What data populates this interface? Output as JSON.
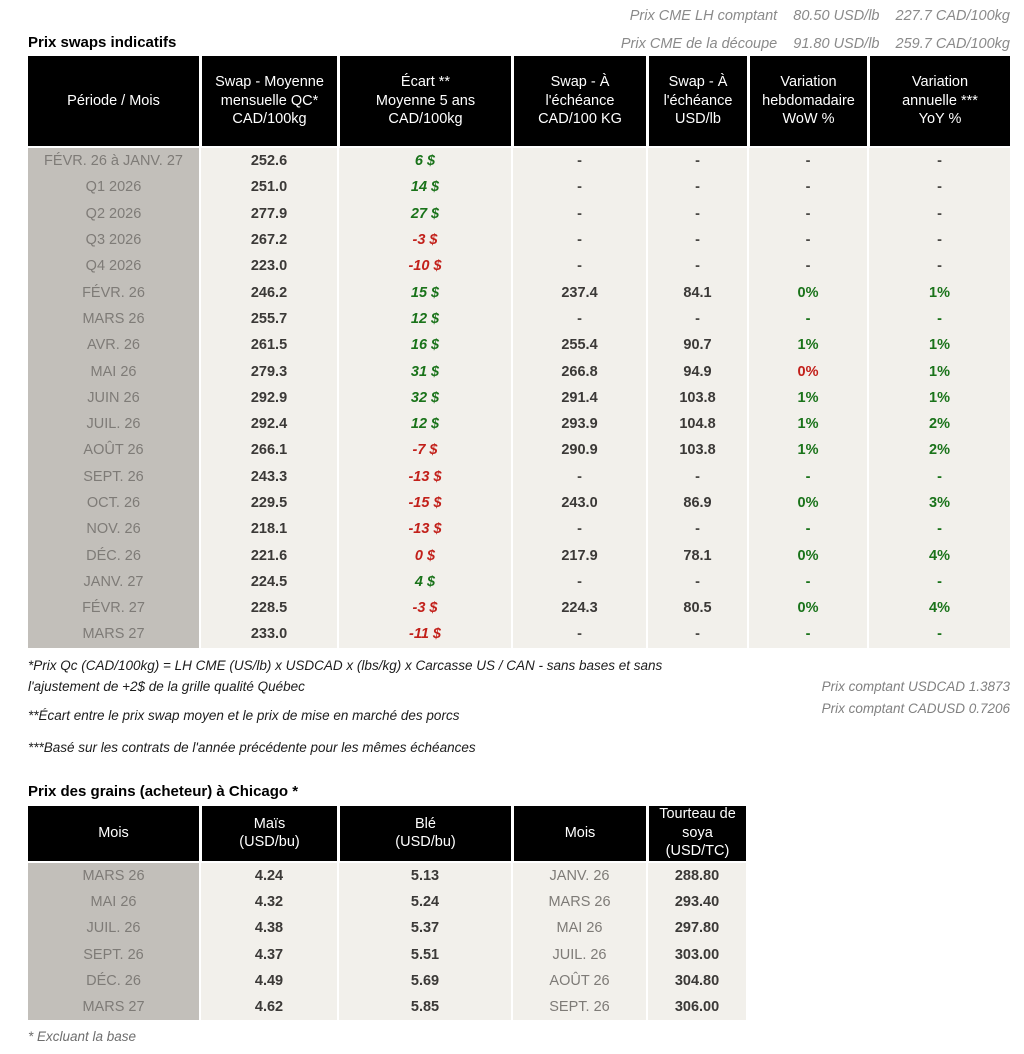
{
  "top": {
    "line1": {
      "label": "Prix CME LH comptant",
      "usd": "80.50 USD/lb",
      "cad": "227.7 CAD/100kg"
    },
    "line2": {
      "label": "Prix CME de la découpe",
      "usd": "91.80 USD/lb",
      "cad": "259.7 CAD/100kg"
    }
  },
  "colors": {
    "green": "#1a731a",
    "red": "#c2201a",
    "neutral": "#4b4946",
    "num": "#3b3937"
  },
  "swaps": {
    "title": "Prix swaps indicatifs",
    "headers": [
      "Période / Mois",
      "Swap - Moyenne\nmensuelle QC*\nCAD/100kg",
      "Écart **\nMoyenne 5 ans\nCAD/100kg",
      "Swap - À\nl'échéance\nCAD/100 KG",
      "Swap - À\nl'échéance\nUSD/lb",
      "Variation\nhebdomadaire\nWoW %",
      "Variation\nannuelle ***\nYoY %"
    ],
    "rows": [
      {
        "period": "FÉVR. 26 à  JANV. 27",
        "swap": "252.6",
        "ecart": "6 $",
        "ecart_tone": "green",
        "cad": "-",
        "usd": "-",
        "wow": "-",
        "wow_tone": "neutral",
        "yoy": "-",
        "yoy_tone": "neutral"
      },
      {
        "period": "Q1 2026",
        "swap": "251.0",
        "ecart": "14 $",
        "ecart_tone": "green",
        "cad": "-",
        "usd": "-",
        "wow": "-",
        "wow_tone": "neutral",
        "yoy": "-",
        "yoy_tone": "neutral"
      },
      {
        "period": "Q2 2026",
        "swap": "277.9",
        "ecart": "27 $",
        "ecart_tone": "green",
        "cad": "-",
        "usd": "-",
        "wow": "-",
        "wow_tone": "neutral",
        "yoy": "-",
        "yoy_tone": "neutral"
      },
      {
        "period": "Q3 2026",
        "swap": "267.2",
        "ecart": "-3 $",
        "ecart_tone": "red",
        "cad": "-",
        "usd": "-",
        "wow": "-",
        "wow_tone": "neutral",
        "yoy": "-",
        "yoy_tone": "neutral"
      },
      {
        "period": "Q4 2026",
        "swap": "223.0",
        "ecart": "-10 $",
        "ecart_tone": "red",
        "cad": "-",
        "usd": "-",
        "wow": "-",
        "wow_tone": "neutral",
        "yoy": "-",
        "yoy_tone": "neutral"
      },
      {
        "period": "FÉVR. 26",
        "swap": "246.2",
        "ecart": "15 $",
        "ecart_tone": "green",
        "cad": "237.4",
        "usd": "84.1",
        "wow": "0%",
        "wow_tone": "green",
        "yoy": "1%",
        "yoy_tone": "green"
      },
      {
        "period": "MARS 26",
        "swap": "255.7",
        "ecart": "12 $",
        "ecart_tone": "green",
        "cad": "-",
        "usd": "-",
        "wow": "-",
        "wow_tone": "green",
        "yoy": "-",
        "yoy_tone": "green"
      },
      {
        "period": "AVR. 26",
        "swap": "261.5",
        "ecart": "16 $",
        "ecart_tone": "green",
        "cad": "255.4",
        "usd": "90.7",
        "wow": "1%",
        "wow_tone": "green",
        "yoy": "1%",
        "yoy_tone": "green"
      },
      {
        "period": "MAI 26",
        "swap": "279.3",
        "ecart": "31 $",
        "ecart_tone": "green",
        "cad": "266.8",
        "usd": "94.9",
        "wow": "0%",
        "wow_tone": "red",
        "yoy": "1%",
        "yoy_tone": "green"
      },
      {
        "period": "JUIN 26",
        "swap": "292.9",
        "ecart": "32 $",
        "ecart_tone": "green",
        "cad": "291.4",
        "usd": "103.8",
        "wow": "1%",
        "wow_tone": "green",
        "yoy": "1%",
        "yoy_tone": "green"
      },
      {
        "period": "JUIL. 26",
        "swap": "292.4",
        "ecart": "12 $",
        "ecart_tone": "green",
        "cad": "293.9",
        "usd": "104.8",
        "wow": "1%",
        "wow_tone": "green",
        "yoy": "2%",
        "yoy_tone": "green"
      },
      {
        "period": "AOÛT 26",
        "swap": "266.1",
        "ecart": "-7 $",
        "ecart_tone": "red",
        "cad": "290.9",
        "usd": "103.8",
        "wow": "1%",
        "wow_tone": "green",
        "yoy": "2%",
        "yoy_tone": "green"
      },
      {
        "period": "SEPT. 26",
        "swap": "243.3",
        "ecart": "-13 $",
        "ecart_tone": "red",
        "cad": "-",
        "usd": "-",
        "wow": "-",
        "wow_tone": "green",
        "yoy": "-",
        "yoy_tone": "green"
      },
      {
        "period": "OCT. 26",
        "swap": "229.5",
        "ecart": "-15 $",
        "ecart_tone": "red",
        "cad": "243.0",
        "usd": "86.9",
        "wow": "0%",
        "wow_tone": "green",
        "yoy": "3%",
        "yoy_tone": "green"
      },
      {
        "period": "NOV. 26",
        "swap": "218.1",
        "ecart": "-13 $",
        "ecart_tone": "red",
        "cad": "-",
        "usd": "-",
        "wow": "-",
        "wow_tone": "green",
        "yoy": "-",
        "yoy_tone": "green"
      },
      {
        "period": "DÉC. 26",
        "swap": "221.6",
        "ecart": "0 $",
        "ecart_tone": "red",
        "cad": "217.9",
        "usd": "78.1",
        "wow": "0%",
        "wow_tone": "green",
        "yoy": "4%",
        "yoy_tone": "green"
      },
      {
        "period": "JANV. 27",
        "swap": "224.5",
        "ecart": "4 $",
        "ecart_tone": "green",
        "cad": "-",
        "usd": "-",
        "wow": "-",
        "wow_tone": "green",
        "yoy": "-",
        "yoy_tone": "green"
      },
      {
        "period": "FÉVR. 27",
        "swap": "228.5",
        "ecart": "-3 $",
        "ecart_tone": "red",
        "cad": "224.3",
        "usd": "80.5",
        "wow": "0%",
        "wow_tone": "green",
        "yoy": "4%",
        "yoy_tone": "green"
      },
      {
        "period": "MARS 27",
        "swap": "233.0",
        "ecart": "-11 $",
        "ecart_tone": "red",
        "cad": "-",
        "usd": "-",
        "wow": "-",
        "wow_tone": "green",
        "yoy": "-",
        "yoy_tone": "green"
      }
    ]
  },
  "footnotes": [
    "*Prix Qc (CAD/100kg) = LH CME (US/lb) x USDCAD x (lbs/kg) x Carcasse US / CAN - sans bases et sans l'ajustement de +2$ de la grille qualité Québec",
    "**Écart entre le prix swap moyen et le prix de mise en marché des porcs",
    "***Basé sur les contrats de l'année précédente pour les mêmes échéances"
  ],
  "spot": [
    "Prix comptant USDCAD 1.3873",
    "Prix comptant CADUSD 0.7206"
  ],
  "grains": {
    "title": "Prix des grains (acheteur) à Chicago *",
    "headers": [
      "Mois",
      "Maïs\n(USD/bu)",
      "Blé\n(USD/bu)",
      "Mois",
      "Tourteau de\nsoya\n(USD/TC)"
    ],
    "rows": [
      {
        "mois": "MARS 26",
        "mais": "4.24",
        "ble": "5.13",
        "mois2": "JANV. 26",
        "tourteau": "288.80"
      },
      {
        "mois": "MAI 26",
        "mais": "4.32",
        "ble": "5.24",
        "mois2": "MARS 26",
        "tourteau": "293.40"
      },
      {
        "mois": "JUIL. 26",
        "mais": "4.38",
        "ble": "5.37",
        "mois2": "MAI 26",
        "tourteau": "297.80"
      },
      {
        "mois": "SEPT. 26",
        "mais": "4.37",
        "ble": "5.51",
        "mois2": "JUIL. 26",
        "tourteau": "303.00"
      },
      {
        "mois": "DÉC. 26",
        "mais": "4.49",
        "ble": "5.69",
        "mois2": "AOÛT 26",
        "tourteau": "304.80"
      },
      {
        "mois": "MARS 27",
        "mais": "4.62",
        "ble": "5.85",
        "mois2": "SEPT. 26",
        "tourteau": "306.00"
      }
    ],
    "footnote": "* Excluant la base"
  }
}
